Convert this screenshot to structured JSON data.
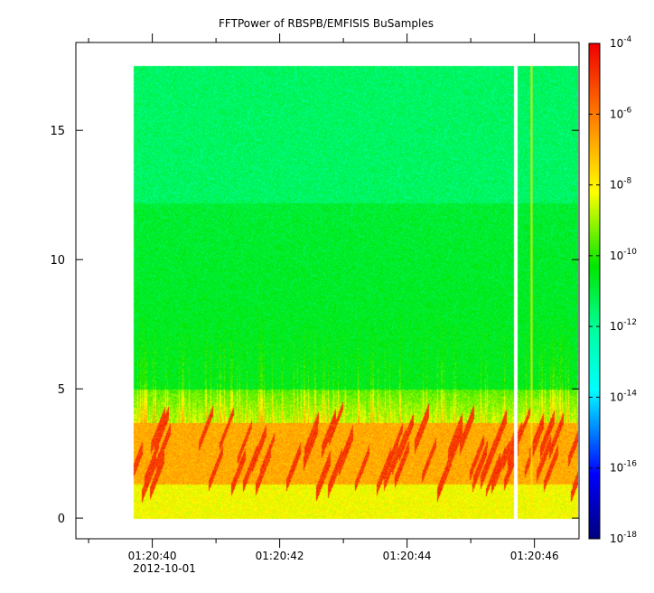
{
  "chart_data": {
    "type": "heatmap",
    "title": "FFTPower of RBSPB/EMFISIS  BuSamples",
    "xlabel": "",
    "ylabel": "",
    "x_range": [
      "01:20:38.8",
      "01:20:46.7"
    ],
    "ylim": [
      -0.8,
      18.4
    ],
    "y_ticks": [
      0,
      5,
      10,
      15
    ],
    "y_tick_labels": [
      "0",
      "5",
      "10",
      "15"
    ],
    "x_ticks": [
      "01:20:40",
      "01:20:42",
      "01:20:44",
      "01:20:46"
    ],
    "x_tick_labels": [
      "01:20:40",
      "01:20:42",
      "01:20:44",
      "01:20:46"
    ],
    "x_date_label": "2012-10-01",
    "data_start": "01:20:39.7",
    "data_end": "01:20:46.7",
    "data_fmax": 17.5,
    "data_gap": "01:20:45.7",
    "colorbar": {
      "scale": "log",
      "zlim": [
        1e-18,
        0.0001
      ],
      "tick_base": "10",
      "tick_exponents": [
        "-4",
        "-6",
        "-8",
        "-10",
        "-12",
        "-14",
        "-16",
        "-18"
      ]
    }
  }
}
